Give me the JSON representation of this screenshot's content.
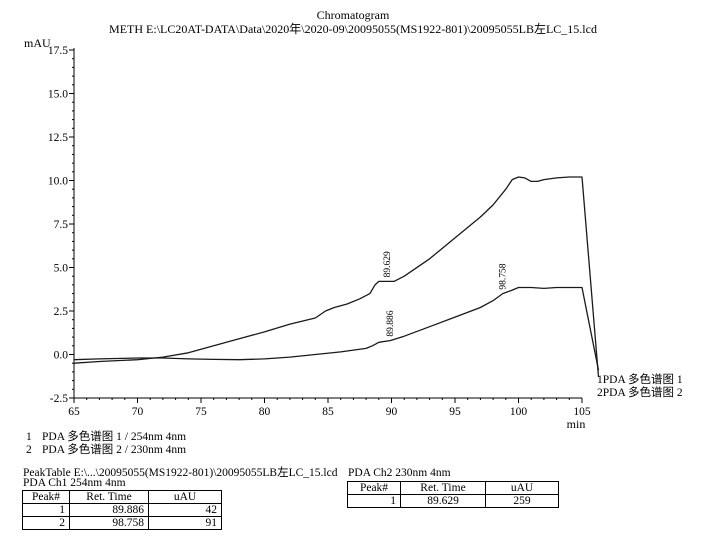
{
  "chart_data": {
    "type": "line",
    "title": "Chromatogram",
    "subtitle": "METH E:\\LC20AT-DATA\\Data\\2020年\\2020-09\\20095055(MS1922-801)\\20095055LB左LC_15.lcd",
    "ylabel": "mAU",
    "xlabel": "min",
    "xlim": [
      65,
      105
    ],
    "ylim": [
      -2.5,
      17.5
    ],
    "x_ticks": [
      "65",
      "70",
      "75",
      "80",
      "85",
      "90",
      "95",
      "100",
      "105"
    ],
    "y_ticks": [
      "-2.5",
      "0.0",
      "2.5",
      "5.0",
      "7.5",
      "10.0",
      "12.5",
      "15.0",
      "17.5"
    ],
    "series": [
      {
        "name": "1PDA 多色谱图 1",
        "x": [
          65,
          67,
          70,
          72,
          74,
          76,
          78,
          80,
          82,
          84,
          84.8,
          85.5,
          86.5,
          87.5,
          88.3,
          88.7,
          89.0,
          89.3,
          89.629,
          90.2,
          91,
          93,
          95,
          97,
          98,
          99,
          99.5,
          100,
          100.5,
          101,
          101.5,
          102,
          103,
          104,
          105,
          106.3
        ],
        "y": [
          -0.5,
          -0.4,
          -0.3,
          -0.15,
          0.1,
          0.5,
          0.9,
          1.3,
          1.75,
          2.1,
          2.5,
          2.7,
          2.9,
          3.2,
          3.5,
          4.0,
          4.2,
          4.2,
          4.2,
          4.2,
          4.5,
          5.5,
          6.7,
          7.9,
          8.6,
          9.5,
          10.05,
          10.2,
          10.15,
          9.95,
          9.95,
          10.05,
          10.15,
          10.2,
          10.2,
          -1.3
        ]
      },
      {
        "name": "2PDA 多色谱图 2",
        "x": [
          65,
          67,
          70,
          72,
          74,
          76,
          78,
          80,
          82,
          84,
          86,
          88,
          88.5,
          89,
          89.886,
          91,
          93,
          95,
          97,
          98,
          98.758,
          99.5,
          100,
          101,
          102,
          103,
          104,
          105,
          106.3
        ],
        "y": [
          -0.3,
          -0.25,
          -0.2,
          -0.2,
          -0.25,
          -0.28,
          -0.3,
          -0.25,
          -0.15,
          0.0,
          0.15,
          0.35,
          0.5,
          0.7,
          0.8,
          1.05,
          1.6,
          2.15,
          2.7,
          3.1,
          3.5,
          3.7,
          3.85,
          3.85,
          3.8,
          3.85,
          3.85,
          3.85,
          -0.9
        ]
      }
    ],
    "peak_labels": [
      {
        "label": "89.629",
        "x": 89.629,
        "y": 4.2
      },
      {
        "label": "98.758",
        "x": 98.758,
        "y": 3.5
      },
      {
        "label": "89.886",
        "x": 89.886,
        "y": 0.8
      }
    ],
    "end_labels": [
      "1PDA 多色谱图 1",
      "2PDA 多色谱图 2"
    ],
    "legend": [
      {
        "num": "1",
        "text": "PDA 多色谱图 1 / 254nm 4nm"
      },
      {
        "num": "2",
        "text": "PDA 多色谱图 2 / 230nm 4nm"
      }
    ]
  },
  "peak_table": {
    "title": "PeakTable E:\\...\\20095055(MS1922-801)\\20095055LB左LC_15.lcd",
    "ch1": {
      "title": "PDA Ch1 254nm 4nm",
      "columns": [
        "Peak#",
        "Ret. Time",
        "uAU"
      ],
      "rows": [
        [
          "1",
          "89.886",
          "42"
        ],
        [
          "2",
          "98.758",
          "91"
        ]
      ]
    },
    "ch2": {
      "title": "PDA Ch2 230nm 4nm",
      "columns": [
        "Peak#",
        "Ret. Time",
        "uAU"
      ],
      "rows": [
        [
          "1",
          "89.629",
          "259"
        ]
      ]
    }
  }
}
